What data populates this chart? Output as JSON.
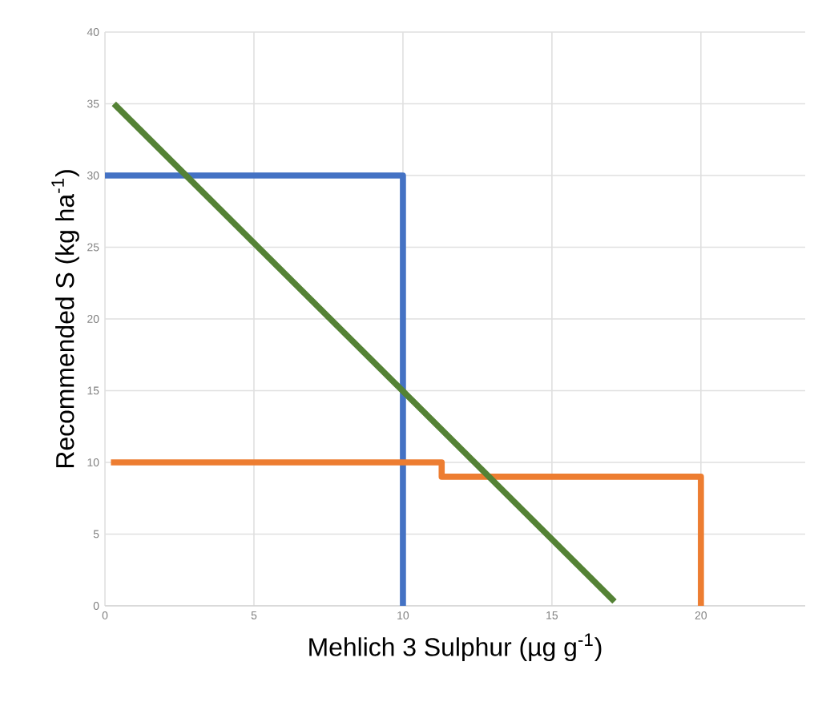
{
  "chart_data": {
    "type": "line",
    "xlabel": "Mehlich 3 Sulphur (µg g$^{-1}$)",
    "ylabel": "Recommended S (kg ha$^{-1}$)",
    "xlim": [
      0,
      23.5
    ],
    "ylim": [
      0,
      40
    ],
    "xticks": [
      0,
      5,
      10,
      15,
      20
    ],
    "yticks": [
      0,
      5,
      10,
      15,
      20,
      25,
      30,
      35,
      40
    ],
    "grid": true,
    "line_style": "solid",
    "marker": "none",
    "series": [
      {
        "color": "#4472c4",
        "x": [
          0,
          10,
          10
        ],
        "values": [
          30,
          30,
          0
        ]
      },
      {
        "color": "#ed7d31",
        "x": [
          0.2,
          11.3,
          11.3,
          20,
          20
        ],
        "values": [
          10,
          10,
          9,
          9,
          0
        ]
      },
      {
        "color": "#548235",
        "x": [
          0.3,
          17.1
        ],
        "values": [
          35,
          0.3
        ]
      }
    ]
  }
}
